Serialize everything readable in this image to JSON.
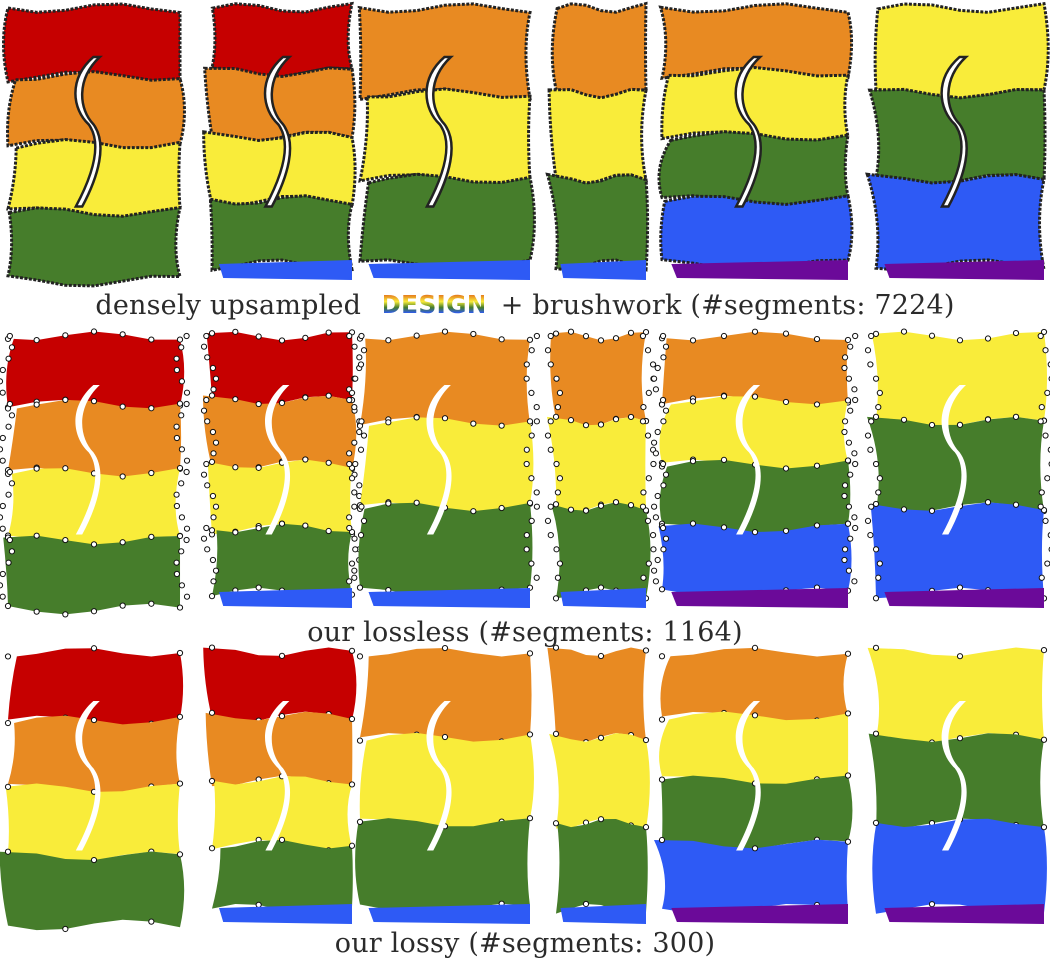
{
  "colors": {
    "red": "#c60000",
    "orange": "#e88a22",
    "yellow": "#f9ec3a",
    "green": "#467d2b",
    "blue": "#2e5af5",
    "purple": "#6b0a99",
    "outline": "#222222"
  },
  "rows": [
    {
      "id": "densely-upsampled",
      "caption_before": "densely upsampled",
      "inline_badge_text": "DESIGN",
      "caption_after": "+ brushwork (#segments: 7224)"
    },
    {
      "id": "lossless",
      "caption": "our lossless (#segments: 1164)"
    },
    {
      "id": "lossy",
      "caption": "our lossy (#segments: 300)"
    }
  ],
  "letters": [
    {
      "bands": [
        "red",
        "orange",
        "yellow",
        "green"
      ],
      "trail": null
    },
    {
      "bands": [
        "red",
        "orange",
        "yellow",
        "green"
      ],
      "trail": "blue"
    },
    {
      "bands": [
        "orange",
        "yellow",
        "green"
      ],
      "trail": "blue"
    },
    {
      "bands": [
        "orange",
        "yellow",
        "green"
      ],
      "trail": "blue"
    },
    {
      "bands": [
        "orange",
        "yellow",
        "green",
        "blue"
      ],
      "trail": "purple"
    },
    {
      "bands": [
        "yellow",
        "green",
        "blue"
      ],
      "trail": "purple"
    }
  ]
}
